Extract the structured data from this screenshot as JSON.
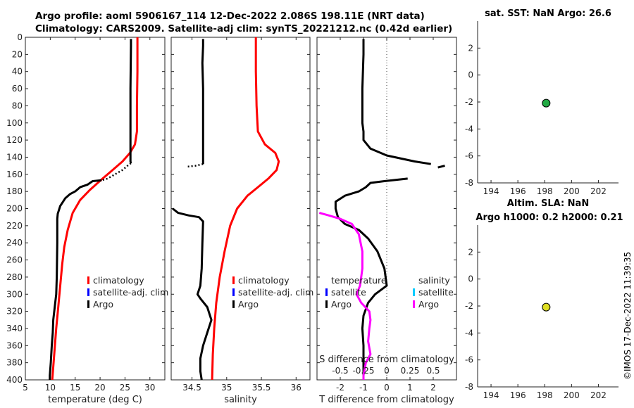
{
  "header": {
    "line1": "Argo profile: aoml 5906167_114 12-Dec-2022 2.086S 198.11E (NRT data)",
    "line2": "Climatology: CARS2009. Satellite-adj clim: synTS_20221212.nc (0.42d earlier)"
  },
  "side_label": "©IMOS 17-Dec-2022 11:39:35",
  "colors": {
    "climatology": "#ff0000",
    "satellite": "#0000ff",
    "argo": "#000000",
    "salinity_diff": "#ff00ff",
    "salinity_satellite": "#00ccff",
    "sst_marker": "#22aa44",
    "sla_marker": "#dddd22"
  },
  "chart_data": [
    {
      "id": "temperature",
      "type": "line",
      "xlabel": "temperature (deg C)",
      "xlim": [
        5,
        33
      ],
      "xticks": [
        5,
        10,
        15,
        20,
        25,
        30
      ],
      "ylim": [
        0,
        400
      ],
      "yticks": [
        0,
        20,
        40,
        60,
        80,
        100,
        120,
        140,
        160,
        180,
        200,
        220,
        240,
        260,
        280,
        300,
        320,
        340,
        360,
        380,
        400
      ],
      "y_reversed": true,
      "legend": {
        "position": "lower-right",
        "entries": [
          "climatology",
          "satellite-adj. clim",
          "Argo"
        ]
      },
      "series": [
        {
          "name": "climatology",
          "color": "climatology",
          "points": [
            [
              27.5,
              0
            ],
            [
              27.5,
              40
            ],
            [
              27.4,
              80
            ],
            [
              27.4,
              110
            ],
            [
              27.0,
              125
            ],
            [
              26.0,
              135
            ],
            [
              24.5,
              145
            ],
            [
              22.5,
              155
            ],
            [
              20.5,
              165
            ],
            [
              18.0,
              178
            ],
            [
              16.0,
              190
            ],
            [
              14.5,
              205
            ],
            [
              13.5,
              225
            ],
            [
              12.8,
              245
            ],
            [
              12.4,
              265
            ],
            [
              12.0,
              290
            ],
            [
              11.6,
              315
            ],
            [
              11.2,
              340
            ],
            [
              10.8,
              370
            ],
            [
              10.4,
              400
            ]
          ]
        },
        {
          "name": "Argo",
          "color": "argo",
          "dash": "solid",
          "points": [
            [
              26.2,
              2
            ],
            [
              26.2,
              10
            ],
            [
              26.1,
              60
            ],
            [
              26.1,
              110
            ],
            [
              26.1,
              145
            ],
            [
              26.2,
              147
            ]
          ]
        },
        {
          "name": "Argo",
          "color": "argo",
          "dash": "dotted",
          "points": [
            [
              26.2,
              147
            ],
            [
              25.5,
              150
            ],
            [
              24.5,
              155
            ],
            [
              23.0,
              160
            ],
            [
              21.5,
              165
            ],
            [
              20.3,
              167
            ]
          ]
        },
        {
          "name": "Argo",
          "color": "argo",
          "dash": "solid",
          "points": [
            [
              20.3,
              167
            ],
            [
              18.5,
              168
            ],
            [
              17.5,
              172
            ],
            [
              16.0,
              175
            ],
            [
              15.0,
              180
            ],
            [
              14.0,
              183
            ],
            [
              13.0,
              188
            ],
            [
              12.0,
              197
            ],
            [
              11.5,
              206
            ],
            [
              11.4,
              212
            ],
            [
              11.4,
              240
            ],
            [
              11.3,
              280
            ],
            [
              11.2,
              300
            ],
            [
              10.9,
              315
            ],
            [
              10.6,
              330
            ],
            [
              10.5,
              345
            ],
            [
              10.3,
              360
            ],
            [
              10.1,
              380
            ],
            [
              9.9,
              395
            ],
            [
              9.9,
              400
            ]
          ]
        }
      ]
    },
    {
      "id": "salinity",
      "type": "line",
      "xlabel": "salinity",
      "xlim": [
        34.2,
        36.2
      ],
      "xticks": [
        34.5,
        35,
        35.5,
        36
      ],
      "xticklabels": [
        "34.5",
        "35",
        "35.5",
        "36"
      ],
      "ylim": [
        0,
        400
      ],
      "y_reversed": true,
      "legend": {
        "position": "lower-right",
        "entries": [
          "climatology",
          "satellite-adj. clim",
          "Argo"
        ]
      },
      "series": [
        {
          "name": "climatology",
          "color": "climatology",
          "points": [
            [
              35.42,
              0
            ],
            [
              35.42,
              40
            ],
            [
              35.43,
              80
            ],
            [
              35.45,
              110
            ],
            [
              35.55,
              125
            ],
            [
              35.7,
              135
            ],
            [
              35.75,
              145
            ],
            [
              35.72,
              155
            ],
            [
              35.6,
              165
            ],
            [
              35.45,
              175
            ],
            [
              35.3,
              185
            ],
            [
              35.15,
              200
            ],
            [
              35.05,
              220
            ],
            [
              34.97,
              250
            ],
            [
              34.9,
              280
            ],
            [
              34.85,
              310
            ],
            [
              34.82,
              340
            ],
            [
              34.8,
              370
            ],
            [
              34.79,
              400
            ]
          ]
        },
        {
          "name": "Argo",
          "color": "argo",
          "dash": "solid",
          "points": [
            [
              34.66,
              2
            ],
            [
              34.66,
              10
            ],
            [
              34.65,
              30
            ],
            [
              34.66,
              60
            ],
            [
              34.66,
              100
            ],
            [
              34.66,
              130
            ],
            [
              34.66,
              148
            ]
          ]
        },
        {
          "name": "Argo",
          "color": "argo",
          "dash": "dotted",
          "points": [
            [
              34.66,
              148
            ],
            [
              34.55,
              150
            ],
            [
              34.45,
              151
            ],
            [
              34.42,
              151
            ]
          ]
        },
        {
          "name": "Argo",
          "color": "argo",
          "dash": "solid",
          "points": [
            [
              34.22,
              200
            ],
            [
              34.3,
              205
            ],
            [
              34.45,
              208
            ],
            [
              34.6,
              210
            ],
            [
              34.66,
              215
            ],
            [
              34.65,
              240
            ],
            [
              34.64,
              270
            ],
            [
              34.62,
              290
            ],
            [
              34.58,
              300
            ],
            [
              34.62,
              305
            ],
            [
              34.72,
              315
            ],
            [
              34.78,
              330
            ],
            [
              34.72,
              345
            ],
            [
              34.66,
              360
            ],
            [
              34.62,
              375
            ],
            [
              34.62,
              390
            ],
            [
              34.64,
              400
            ]
          ]
        }
      ]
    },
    {
      "id": "difference",
      "type": "line",
      "xlabel": "T difference from climatology",
      "xlim": [
        -3,
        3
      ],
      "xticks": [
        -2,
        -1,
        0,
        1,
        2
      ],
      "xticklabels": [
        "-2",
        "-1",
        "0",
        "1",
        "2"
      ],
      "top_axis": {
        "label": "S difference from climatology",
        "ticks": [
          -0.5,
          -0.25,
          0,
          0.25,
          0.5
        ],
        "ticklabels": [
          "-0.5",
          "-0.25",
          "0",
          "0.25",
          "0.5"
        ]
      },
      "ylim": [
        0,
        400
      ],
      "y_reversed": true,
      "zero_line": 0,
      "legend_left": {
        "position": "lower-left",
        "title": "temperature",
        "entries": [
          "satellite",
          "Argo"
        ]
      },
      "legend_right": {
        "position": "lower-right",
        "title": "salinity",
        "entries": [
          "satellite",
          "Argo"
        ]
      },
      "series": [
        {
          "name": "T Argo",
          "color": "argo",
          "points": [
            [
              -1.0,
              2
            ],
            [
              -1.0,
              20
            ],
            [
              -1.05,
              60
            ],
            [
              -1.05,
              100
            ],
            [
              -1.0,
              110
            ],
            [
              -1.0,
              120
            ],
            [
              -0.7,
              130
            ],
            [
              0.0,
              138
            ],
            [
              1.2,
              145
            ],
            [
              1.9,
              148
            ]
          ]
        },
        {
          "name": "T Argo",
          "color": "argo",
          "points": [
            [
              2.2,
              152
            ],
            [
              2.5,
              150
            ]
          ]
        },
        {
          "name": "T Argo",
          "color": "argo",
          "points": [
            [
              0.9,
              165
            ],
            [
              -0.1,
              168
            ],
            [
              -0.7,
              170
            ],
            [
              -0.9,
              175
            ],
            [
              -1.2,
              180
            ],
            [
              -1.8,
              185
            ],
            [
              -2.2,
              192
            ],
            [
              -2.2,
              200
            ],
            [
              -2.1,
              210
            ],
            [
              -1.8,
              218
            ],
            [
              -1.2,
              225
            ],
            [
              -0.8,
              235
            ],
            [
              -0.4,
              250
            ],
            [
              -0.1,
              270
            ],
            [
              0.0,
              290
            ],
            [
              -0.5,
              300
            ],
            [
              -0.8,
              310
            ],
            [
              -1.0,
              325
            ],
            [
              -1.05,
              340
            ],
            [
              -1.0,
              360
            ],
            [
              -1.0,
              380
            ],
            [
              -1.0,
              400
            ]
          ]
        },
        {
          "name": "S Argo",
          "color": "salinity_diff",
          "points": [
            [
              -2.9,
              205
            ],
            [
              -2.5,
              208
            ],
            [
              -2.0,
              212
            ],
            [
              -1.5,
              218
            ],
            [
              -1.2,
              230
            ],
            [
              -1.05,
              250
            ],
            [
              -1.05,
              270
            ],
            [
              -1.15,
              290
            ],
            [
              -1.3,
              300
            ],
            [
              -1.1,
              310
            ],
            [
              -0.75,
              320
            ],
            [
              -0.7,
              330
            ],
            [
              -0.75,
              340
            ],
            [
              -0.8,
              355
            ],
            [
              -0.7,
              370
            ],
            [
              -0.9,
              380
            ],
            [
              -1.0,
              395
            ],
            [
              -1.0,
              400
            ]
          ]
        }
      ]
    },
    {
      "id": "sst",
      "type": "scatter",
      "title": "sat. SST: NaN Argo: 26.6",
      "xlim": [
        193,
        203.5
      ],
      "xticks": [
        194,
        196,
        198,
        200,
        202
      ],
      "ylim": [
        -8,
        4
      ],
      "yticks": [
        -8,
        -6,
        -4,
        -2,
        0,
        2
      ],
      "points": [
        {
          "x": 198.11,
          "y": -2.086,
          "color": "sst_marker"
        }
      ]
    },
    {
      "id": "sla",
      "type": "scatter",
      "title": "Altim. SLA: NaN",
      "subtitle": "Argo h1000: 0.2 h2000: 0.21",
      "xlim": [
        193,
        203.5
      ],
      "xticks": [
        194,
        196,
        198,
        200,
        202
      ],
      "ylim": [
        -8,
        4
      ],
      "yticks": [
        -8,
        -6,
        -4,
        -2,
        0,
        2
      ],
      "points": [
        {
          "x": 198.11,
          "y": -2.086,
          "color": "sla_marker"
        }
      ]
    }
  ]
}
